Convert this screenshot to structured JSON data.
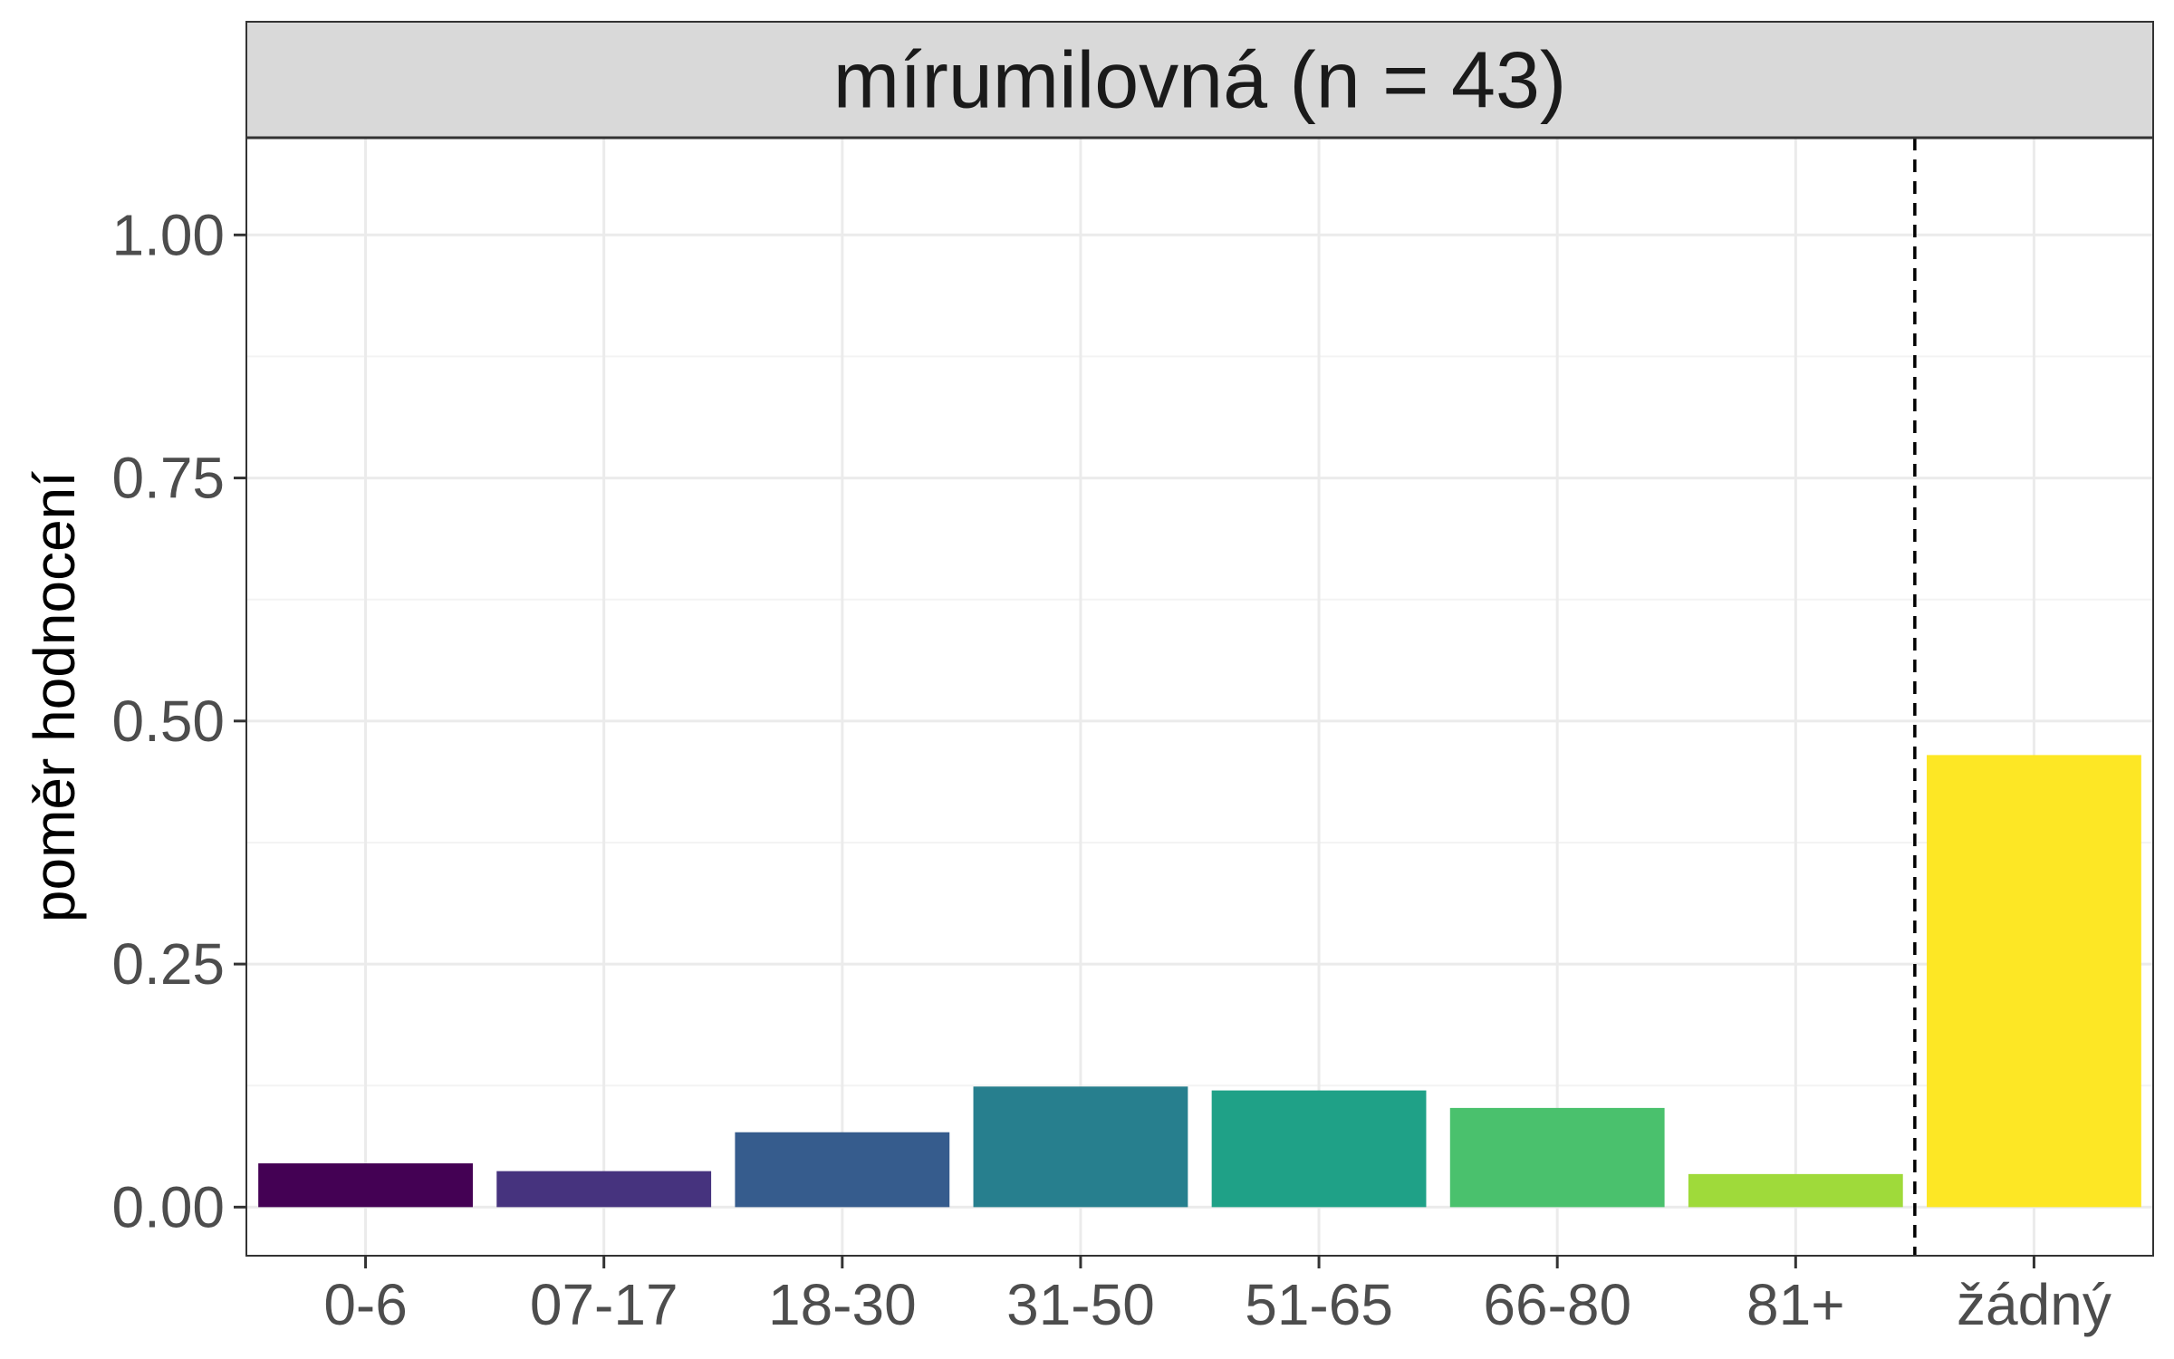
{
  "chart_data": {
    "type": "bar",
    "facet_title": "mírumilovná (n = 43)",
    "xlabel": "",
    "ylabel": "poměr hodnocení",
    "categories": [
      "0-6",
      "07-17",
      "18-30",
      "31-50",
      "51-65",
      "66-80",
      "81+",
      "žádný"
    ],
    "values": [
      0.045,
      0.037,
      0.077,
      0.124,
      0.12,
      0.102,
      0.034,
      0.465
    ],
    "colors": [
      "#440154",
      "#46337E",
      "#365C8D",
      "#277F8E",
      "#1FA187",
      "#4AC16D",
      "#9FDA3A",
      "#FDE725"
    ],
    "ylim": [
      -0.05,
      1.1
    ],
    "yticks": [
      0.0,
      0.25,
      0.5,
      0.75,
      1.0
    ],
    "ytick_labels": [
      "0.00",
      "0.25",
      "0.50",
      "0.75",
      "1.00"
    ],
    "grid": true,
    "separator": {
      "between": [
        "81+",
        "žádný"
      ],
      "style": "dashed"
    },
    "theme": {
      "panel_border": "#333333",
      "strip_fill": "#d9d9d9",
      "grid_major": "#ebebeb",
      "grid_minor": "#f3f3f3"
    }
  }
}
